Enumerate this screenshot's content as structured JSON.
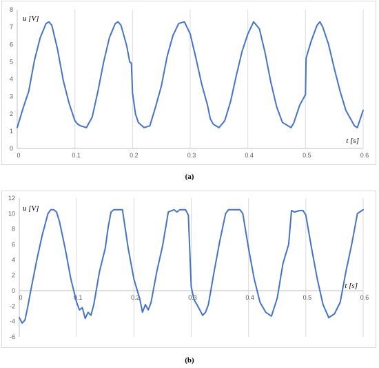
{
  "captions": [
    "(a)",
    "(b)"
  ],
  "colors": {
    "series": "#4472C4",
    "grid": "#d9d9d9",
    "axis": "#bfbfbf",
    "tick_text": "#595959"
  },
  "chart_data": [
    {
      "type": "line",
      "ylabel": "u [V]",
      "xlabel": "t [s]",
      "xlim": [
        0,
        0.6
      ],
      "ylim": [
        0,
        8
      ],
      "x_ticks": [
        "0",
        "0.1",
        "0.2",
        "0.3",
        "0.4",
        "0.5",
        "0.6"
      ],
      "y_ticks": [
        "0",
        "1",
        "2",
        "3",
        "4",
        "5",
        "6",
        "7",
        "8"
      ],
      "grid": "vertical",
      "series": [
        {
          "x": [
            0,
            0.01,
            0.02,
            0.03,
            0.04,
            0.05,
            0.055,
            0.06,
            0.07,
            0.08,
            0.09,
            0.1,
            0.105,
            0.11,
            0.115,
            0.12,
            0.13,
            0.14,
            0.15,
            0.16,
            0.17,
            0.175,
            0.18,
            0.19,
            0.195,
            0.198,
            0.2,
            0.205,
            0.21,
            0.215,
            0.22,
            0.23,
            0.24,
            0.25,
            0.26,
            0.27,
            0.28,
            0.29,
            0.3,
            0.31,
            0.32,
            0.33,
            0.335,
            0.34,
            0.345,
            0.35,
            0.36,
            0.37,
            0.38,
            0.39,
            0.4,
            0.41,
            0.42,
            0.43,
            0.44,
            0.45,
            0.46,
            0.465,
            0.47,
            0.475,
            0.48,
            0.49,
            0.5,
            0.501,
            0.51,
            0.52,
            0.525,
            0.53,
            0.54,
            0.55,
            0.56,
            0.57,
            0.58,
            0.585,
            0.59,
            0.6
          ],
          "y": [
            1.2,
            2.3,
            3.3,
            5.1,
            6.4,
            7.2,
            7.3,
            7.1,
            5.7,
            3.9,
            2.6,
            1.6,
            1.4,
            1.3,
            1.25,
            1.2,
            1.8,
            3.3,
            5.0,
            6.4,
            7.2,
            7.3,
            7.1,
            5.9,
            5.0,
            4.9,
            3.2,
            2.0,
            1.5,
            1.35,
            1.2,
            1.3,
            2.4,
            3.6,
            5.3,
            6.5,
            7.2,
            7.3,
            6.6,
            5.2,
            3.7,
            2.5,
            1.7,
            1.4,
            1.3,
            1.2,
            1.6,
            2.7,
            4.2,
            5.6,
            6.6,
            7.3,
            6.9,
            5.5,
            3.8,
            2.4,
            1.5,
            1.4,
            1.3,
            1.2,
            1.5,
            2.5,
            3.1,
            5.2,
            6.2,
            7.1,
            7.3,
            7.0,
            6.0,
            4.6,
            3.3,
            2.2,
            1.6,
            1.3,
            1.2,
            2.2
          ]
        }
      ]
    },
    {
      "type": "line",
      "ylabel": "u [V]",
      "xlabel": "t [s]",
      "xlim": [
        0,
        0.6
      ],
      "ylim": [
        -6,
        12
      ],
      "x_ticks": [
        "0",
        "0.1",
        "0.2",
        "0.3",
        "0.4",
        "0.5",
        "0.6"
      ],
      "y_ticks": [
        "-6",
        "-4",
        "-2",
        "0",
        "2",
        "4",
        "6",
        "8",
        "10",
        "12"
      ],
      "grid": "vertical",
      "series": [
        {
          "x": [
            0,
            0.005,
            0.01,
            0.015,
            0.02,
            0.03,
            0.04,
            0.05,
            0.055,
            0.06,
            0.065,
            0.07,
            0.08,
            0.09,
            0.1,
            0.105,
            0.11,
            0.115,
            0.12,
            0.125,
            0.13,
            0.14,
            0.15,
            0.155,
            0.16,
            0.165,
            0.17,
            0.18,
            0.185,
            0.19,
            0.2,
            0.21,
            0.215,
            0.22,
            0.225,
            0.23,
            0.24,
            0.25,
            0.26,
            0.27,
            0.275,
            0.28,
            0.285,
            0.29,
            0.295,
            0.3,
            0.305,
            0.31,
            0.32,
            0.325,
            0.33,
            0.34,
            0.35,
            0.36,
            0.365,
            0.37,
            0.38,
            0.385,
            0.39,
            0.4,
            0.41,
            0.42,
            0.43,
            0.44,
            0.45,
            0.46,
            0.47,
            0.475,
            0.48,
            0.49,
            0.495,
            0.5,
            0.51,
            0.52,
            0.53,
            0.54,
            0.55,
            0.56,
            0.57,
            0.58,
            0.59,
            0.6
          ],
          "y": [
            -3.5,
            -4.2,
            -3.8,
            -2.0,
            0.0,
            3.8,
            7.2,
            10.0,
            10.5,
            10.5,
            10.2,
            9.0,
            5.5,
            1.5,
            -1.5,
            -2.5,
            -2.2,
            -3.6,
            -2.8,
            -3.2,
            -1.8,
            2.5,
            5.5,
            8.2,
            10.2,
            10.5,
            10.5,
            10.5,
            8.0,
            5.5,
            1.5,
            -1.0,
            -2.8,
            -1.8,
            -2.5,
            -1.5,
            2.5,
            5.8,
            10.2,
            10.5,
            10.2,
            10.5,
            10.5,
            10.5,
            9.8,
            0.5,
            -1.2,
            -1.8,
            -3.2,
            -2.8,
            -1.8,
            2.5,
            6.5,
            10.0,
            10.5,
            10.5,
            10.5,
            10.5,
            10.0,
            5.5,
            1.5,
            -1.5,
            -2.8,
            -3.3,
            -1.0,
            3.5,
            6.0,
            10.4,
            10.2,
            10.4,
            10.4,
            9.8,
            5.5,
            1.5,
            -1.8,
            -3.5,
            -3.0,
            -1.5,
            2.5,
            6.0,
            10.0,
            10.5
          ]
        }
      ]
    }
  ]
}
